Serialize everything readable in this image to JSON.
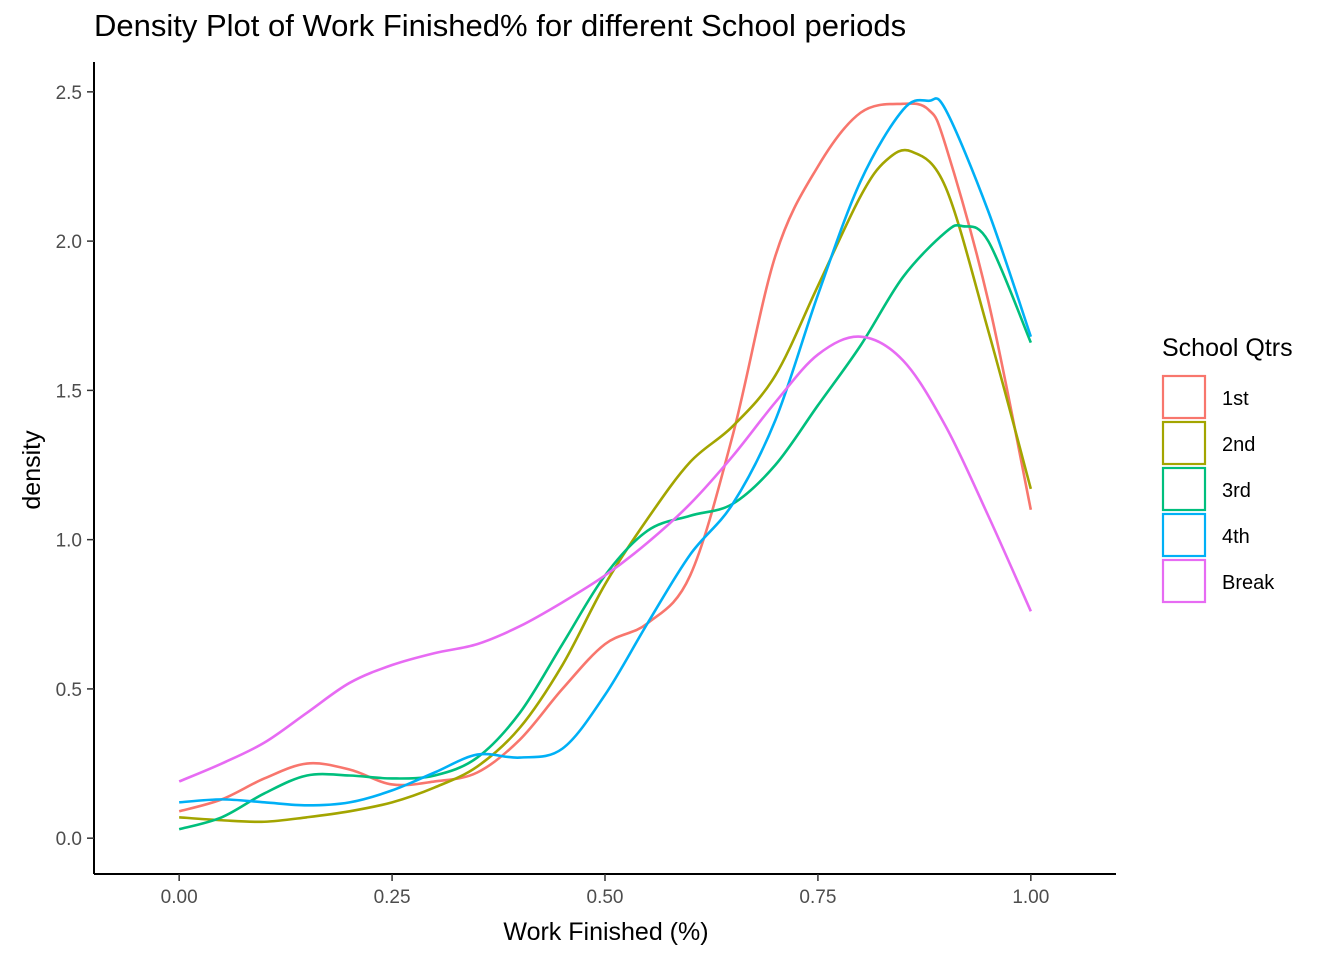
{
  "chart_data": {
    "type": "line",
    "title": "Density Plot of Work Finished% for different School periods",
    "xlabel": "Work Finished (%)",
    "ylabel": "density",
    "xlim": [
      -0.1,
      1.1
    ],
    "ylim": [
      -0.12,
      2.6
    ],
    "x_ticks": [
      0.0,
      0.25,
      0.5,
      0.75,
      1.0
    ],
    "x_tick_labels": [
      "0.00",
      "0.25",
      "0.50",
      "0.75",
      "1.00"
    ],
    "y_ticks": [
      0.0,
      0.5,
      1.0,
      1.5,
      2.0,
      2.5
    ],
    "y_tick_labels": [
      "0.0",
      "0.5",
      "1.0",
      "1.5",
      "2.0",
      "2.5"
    ],
    "grid": false,
    "legend": {
      "title": "School Qtrs",
      "position": "right"
    },
    "series": [
      {
        "name": "1st",
        "color": "#F8766D",
        "x": [
          0.0,
          0.05,
          0.1,
          0.15,
          0.2,
          0.25,
          0.3,
          0.35,
          0.4,
          0.45,
          0.5,
          0.55,
          0.6,
          0.65,
          0.7,
          0.75,
          0.8,
          0.85,
          0.88,
          0.9,
          0.95,
          1.0
        ],
        "y": [
          0.09,
          0.13,
          0.2,
          0.25,
          0.23,
          0.18,
          0.19,
          0.22,
          0.33,
          0.5,
          0.65,
          0.72,
          0.88,
          1.35,
          1.95,
          2.25,
          2.43,
          2.46,
          2.44,
          2.32,
          1.8,
          1.1
        ]
      },
      {
        "name": "2nd",
        "color": "#A3A500",
        "x": [
          0.0,
          0.05,
          0.1,
          0.15,
          0.2,
          0.25,
          0.3,
          0.35,
          0.4,
          0.45,
          0.5,
          0.55,
          0.6,
          0.65,
          0.7,
          0.75,
          0.8,
          0.83,
          0.86,
          0.9,
          0.95,
          1.0
        ],
        "y": [
          0.07,
          0.06,
          0.055,
          0.07,
          0.09,
          0.12,
          0.17,
          0.24,
          0.37,
          0.58,
          0.85,
          1.07,
          1.26,
          1.38,
          1.55,
          1.85,
          2.15,
          2.27,
          2.3,
          2.18,
          1.7,
          1.17
        ]
      },
      {
        "name": "3rd",
        "color": "#00BF7D",
        "x": [
          0.0,
          0.05,
          0.1,
          0.15,
          0.2,
          0.25,
          0.3,
          0.35,
          0.4,
          0.45,
          0.5,
          0.55,
          0.6,
          0.65,
          0.7,
          0.75,
          0.8,
          0.85,
          0.9,
          0.92,
          0.95,
          1.0
        ],
        "y": [
          0.03,
          0.07,
          0.15,
          0.21,
          0.21,
          0.2,
          0.21,
          0.27,
          0.42,
          0.65,
          0.88,
          1.03,
          1.08,
          1.12,
          1.25,
          1.45,
          1.65,
          1.88,
          2.03,
          2.05,
          2.0,
          1.66
        ]
      },
      {
        "name": "4th",
        "color": "#00B0F6",
        "x": [
          0.0,
          0.05,
          0.1,
          0.15,
          0.2,
          0.25,
          0.3,
          0.35,
          0.4,
          0.45,
          0.5,
          0.55,
          0.6,
          0.65,
          0.7,
          0.75,
          0.8,
          0.85,
          0.88,
          0.9,
          0.95,
          1.0
        ],
        "y": [
          0.12,
          0.13,
          0.12,
          0.11,
          0.12,
          0.16,
          0.22,
          0.28,
          0.27,
          0.3,
          0.48,
          0.72,
          0.95,
          1.12,
          1.4,
          1.82,
          2.2,
          2.44,
          2.47,
          2.44,
          2.1,
          1.68
        ]
      },
      {
        "name": "Break",
        "color": "#E76BF3",
        "x": [
          0.0,
          0.05,
          0.1,
          0.15,
          0.2,
          0.25,
          0.3,
          0.35,
          0.4,
          0.45,
          0.5,
          0.55,
          0.6,
          0.65,
          0.7,
          0.75,
          0.8,
          0.85,
          0.9,
          0.95,
          1.0
        ],
        "y": [
          0.19,
          0.25,
          0.32,
          0.42,
          0.52,
          0.58,
          0.62,
          0.65,
          0.71,
          0.79,
          0.88,
          0.99,
          1.12,
          1.28,
          1.46,
          1.62,
          1.68,
          1.6,
          1.38,
          1.08,
          0.76
        ]
      }
    ]
  }
}
